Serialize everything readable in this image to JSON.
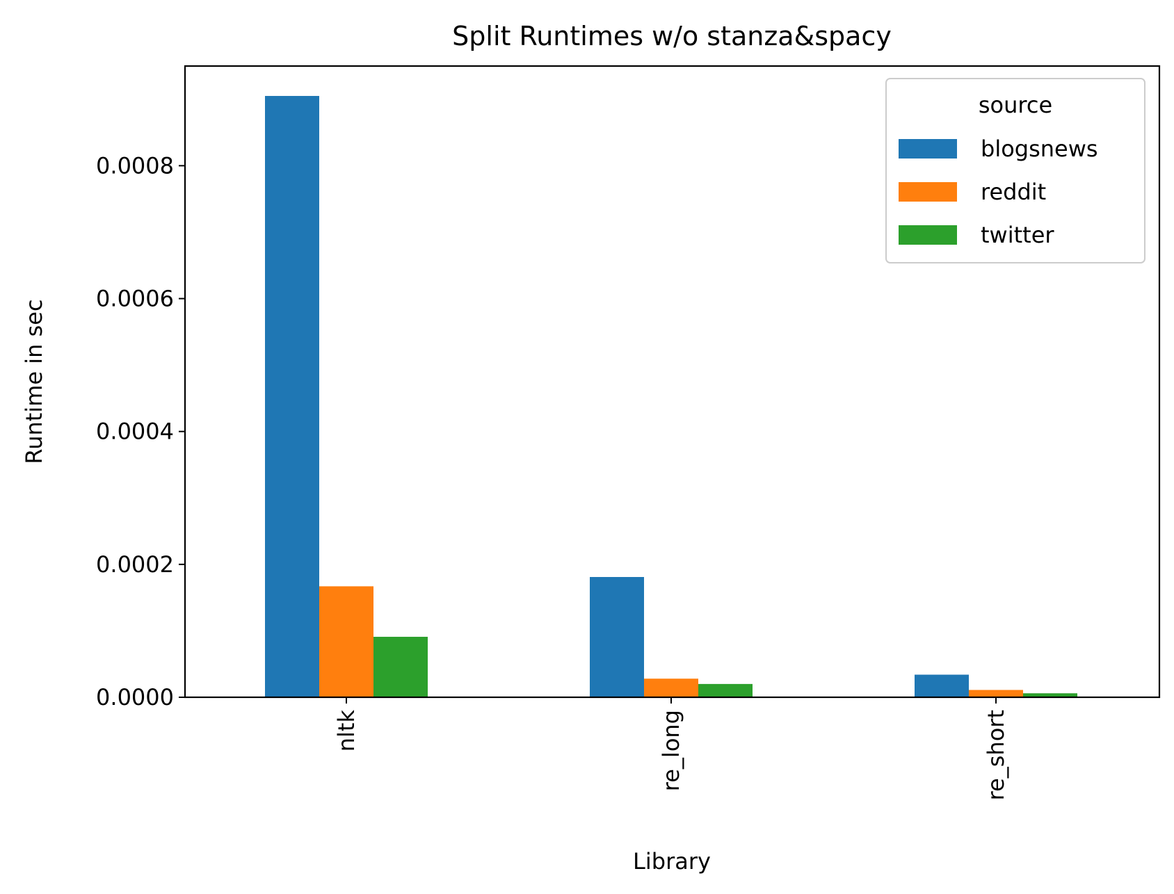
{
  "chart_data": {
    "type": "bar",
    "title": "Split Runtimes w/o stanza&spacy",
    "xlabel": "Library",
    "ylabel": "Runtime in sec",
    "categories": [
      "nltk",
      "re_long",
      "re_short"
    ],
    "series": [
      {
        "name": "blogsnews",
        "color": "#1f77b4",
        "values": [
          0.000905,
          0.000181,
          3.4e-05
        ]
      },
      {
        "name": "reddit",
        "color": "#ff7f0e",
        "values": [
          0.000167,
          2.8e-05,
          1.1e-05
        ]
      },
      {
        "name": "twitter",
        "color": "#2ca02c",
        "values": [
          9.1e-05,
          2e-05,
          6e-06
        ]
      }
    ],
    "ylim": [
      0,
      0.00095
    ],
    "yticks": [
      0,
      0.0002,
      0.0004,
      0.0006,
      0.0008
    ],
    "ytick_labels": [
      "0.0000",
      "0.0002",
      "0.0004",
      "0.0006",
      "0.0008"
    ],
    "legend": {
      "title": "source",
      "placement": "top-right"
    },
    "grid": false
  }
}
